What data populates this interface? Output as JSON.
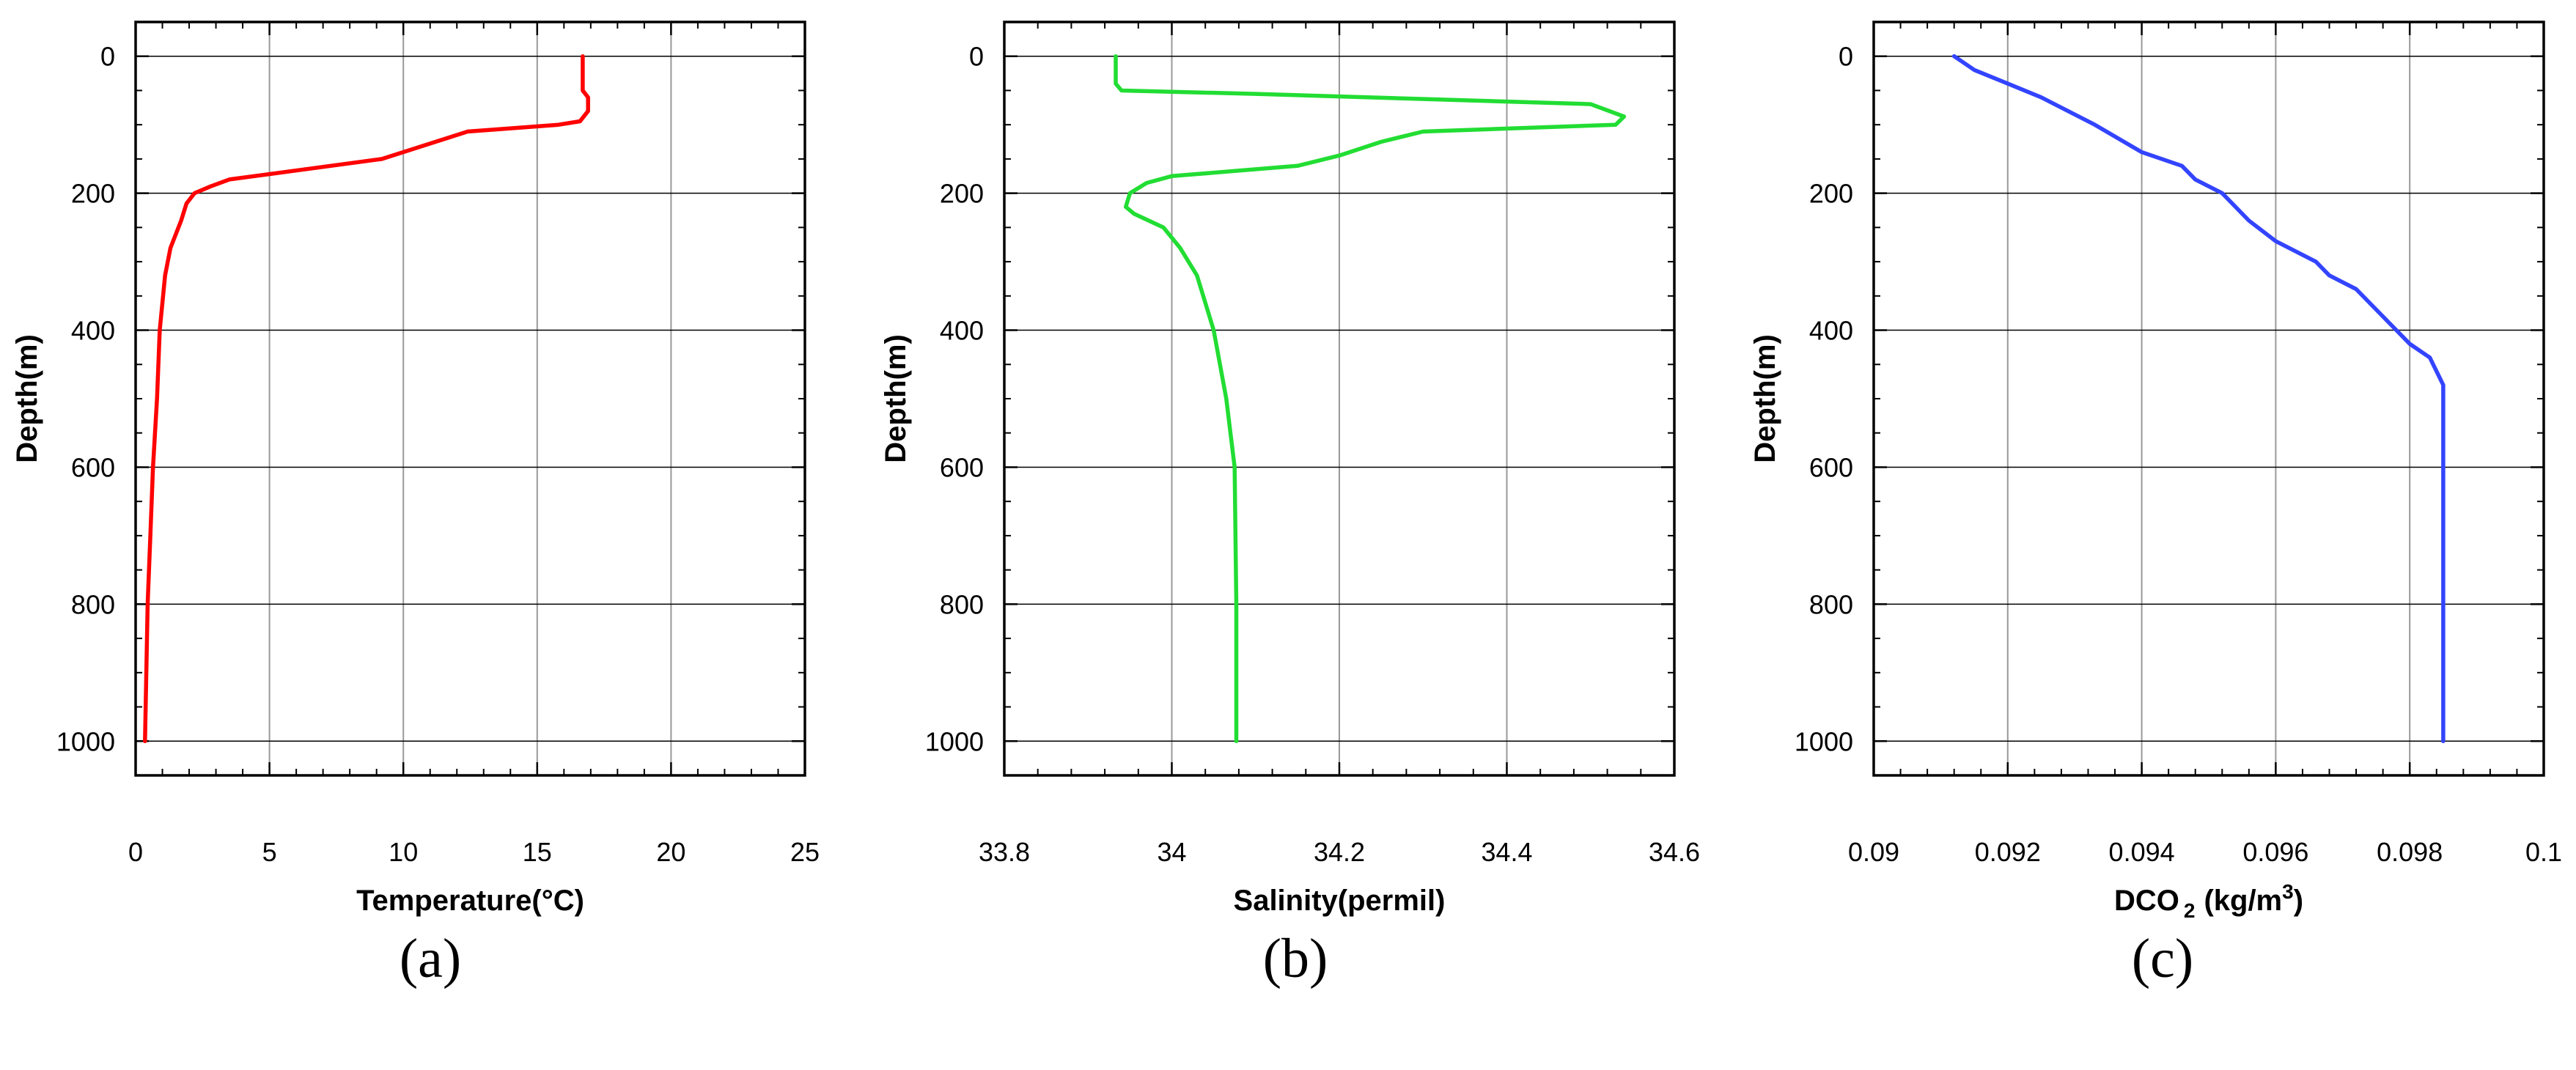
{
  "figure": {
    "captions": [
      "(a)",
      "(b)",
      "(c)"
    ]
  },
  "chart_data": [
    {
      "type": "line",
      "panel": "(a)",
      "xlabel": "Temperature(°C)",
      "ylabel": "Depth(m)",
      "xlim": [
        0,
        25
      ],
      "ylim": [
        -50,
        1050
      ],
      "y_inverted": true,
      "xticks": [
        0,
        5,
        10,
        15,
        20,
        25
      ],
      "xtick_labels": [
        "0",
        "5",
        "10",
        "15",
        "20",
        "25"
      ],
      "yticks": [
        0,
        200,
        400,
        600,
        800,
        1000
      ],
      "ytick_labels": [
        "0",
        "200",
        "400",
        "600",
        "800",
        "1000"
      ],
      "grid": true,
      "series": [
        {
          "name": "Temperature",
          "color": "#ff0000",
          "x": [
            16.7,
            16.7,
            16.9,
            16.9,
            16.6,
            15.8,
            12.4,
            9.2,
            3.5,
            2.8,
            2.2,
            1.9,
            1.7,
            1.3,
            1.1,
            0.9,
            0.8,
            0.65,
            0.55,
            0.45,
            0.4,
            0.35
          ],
          "y": [
            0,
            50,
            60,
            80,
            95,
            100,
            110,
            150,
            180,
            190,
            200,
            215,
            240,
            280,
            320,
            400,
            500,
            600,
            700,
            800,
            900,
            1000
          ]
        }
      ]
    },
    {
      "type": "line",
      "panel": "(b)",
      "xlabel": "Salinity(permil)",
      "ylabel": "Depth(m)",
      "xlim": [
        33.8,
        34.6
      ],
      "ylim": [
        -50,
        1050
      ],
      "y_inverted": true,
      "xticks": [
        33.8,
        34.0,
        34.2,
        34.4,
        34.6
      ],
      "xtick_labels": [
        "33.8",
        "34",
        "34.2",
        "34.4",
        "34.6"
      ],
      "yticks": [
        0,
        200,
        400,
        600,
        800,
        1000
      ],
      "ytick_labels": [
        "0",
        "200",
        "400",
        "600",
        "800",
        "1000"
      ],
      "grid": true,
      "series": [
        {
          "name": "Salinity",
          "color": "#22dd33",
          "x": [
            33.933,
            33.933,
            33.94,
            34.1,
            34.5,
            34.54,
            34.53,
            34.3,
            34.25,
            34.2,
            34.15,
            34.0,
            33.97,
            33.95,
            33.945,
            33.955,
            33.99,
            34.01,
            34.03,
            34.05,
            34.065,
            34.075,
            34.077,
            34.077
          ],
          "y": [
            0,
            40,
            50,
            55,
            70,
            88,
            100,
            110,
            125,
            145,
            160,
            175,
            185,
            200,
            220,
            230,
            250,
            280,
            320,
            400,
            500,
            600,
            800,
            1000
          ]
        }
      ]
    },
    {
      "type": "line",
      "panel": "(c)",
      "xlabel": "DCO",
      "xlabel_sub": "2",
      "xlabel_unit": "(kg/m",
      "xlabel_sup": "3",
      "xlabel_close": ")",
      "ylabel": "Depth(m)",
      "xlim": [
        0.09,
        0.1
      ],
      "ylim": [
        -50,
        1050
      ],
      "y_inverted": true,
      "xticks": [
        0.09,
        0.092,
        0.094,
        0.096,
        0.098,
        0.1
      ],
      "xtick_labels": [
        "0.09",
        "0.092",
        "0.094",
        "0.096",
        "0.098",
        "0.1"
      ],
      "yticks": [
        0,
        200,
        400,
        600,
        800,
        1000
      ],
      "ytick_labels": [
        "0",
        "200",
        "400",
        "600",
        "800",
        "1000"
      ],
      "grid": true,
      "series": [
        {
          "name": "DCO2",
          "color": "#3344ff",
          "x": [
            0.0912,
            0.0915,
            0.092,
            0.0925,
            0.0933,
            0.094,
            0.0946,
            0.0948,
            0.0952,
            0.0956,
            0.096,
            0.0966,
            0.0968,
            0.0972,
            0.0978,
            0.098,
            0.0983,
            0.0985,
            0.0985,
            0.0985
          ],
          "y": [
            0,
            20,
            40,
            60,
            100,
            140,
            160,
            180,
            200,
            240,
            270,
            300,
            320,
            340,
            400,
            420,
            440,
            480,
            800,
            1000
          ]
        }
      ]
    }
  ]
}
